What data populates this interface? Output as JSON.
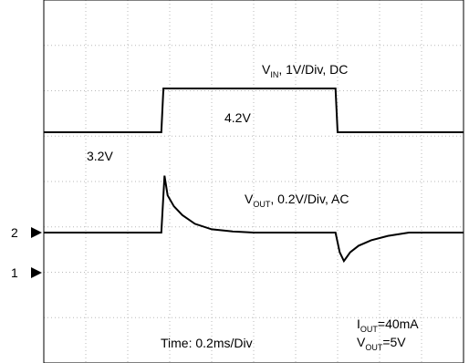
{
  "chart_data": {
    "type": "line",
    "title": "",
    "time_label": "Time: 0.2ms/Div",
    "time_per_div_ms": 0.2,
    "x_range_ms": [
      0,
      2.0
    ],
    "grid": true,
    "grid_divisions": {
      "x": 10,
      "y": 8
    },
    "channel_markers": [
      {
        "label": "2",
        "level_div": 4.0
      },
      {
        "label": "1",
        "level_div": 3.0
      }
    ],
    "series": [
      {
        "name_main": "V",
        "name_sub": "IN",
        "name_rest": ", 1V/Div, DC",
        "units_per_div": 1,
        "coupling": "DC",
        "points_ms_V": [
          [
            0,
            3.2
          ],
          [
            0.56,
            3.2
          ],
          [
            0.57,
            4.2
          ],
          [
            1.39,
            4.2
          ],
          [
            1.4,
            3.2
          ],
          [
            2.0,
            3.2
          ]
        ],
        "level_labels": [
          {
            "text": "4.2V",
            "t_ms": 0.78,
            "v": 4.2
          },
          {
            "text": "3.2V",
            "t_ms": 0.18,
            "v": 3.2
          }
        ]
      },
      {
        "name_main": "V",
        "name_sub": "OUT",
        "name_rest": ", 0.2V/Div, AC",
        "units_per_div": 0.2,
        "coupling": "AC",
        "points_ms_V": [
          [
            0,
            0
          ],
          [
            0.56,
            0
          ],
          [
            0.575,
            0.26
          ],
          [
            0.59,
            0.17
          ],
          [
            0.62,
            0.12
          ],
          [
            0.66,
            0.08
          ],
          [
            0.72,
            0.04
          ],
          [
            0.8,
            0.015
          ],
          [
            0.9,
            0.005
          ],
          [
            1.0,
            0
          ],
          [
            1.39,
            0
          ],
          [
            1.41,
            -0.09
          ],
          [
            1.43,
            -0.13
          ],
          [
            1.46,
            -0.09
          ],
          [
            1.5,
            -0.06
          ],
          [
            1.56,
            -0.035
          ],
          [
            1.64,
            -0.015
          ],
          [
            1.74,
            0
          ],
          [
            2.0,
            0
          ]
        ]
      }
    ],
    "annotations": [
      {
        "main": "I",
        "sub": "OUT",
        "rest": "=40mA"
      },
      {
        "main": "V",
        "sub": "OUT",
        "rest": "=5V"
      }
    ]
  }
}
